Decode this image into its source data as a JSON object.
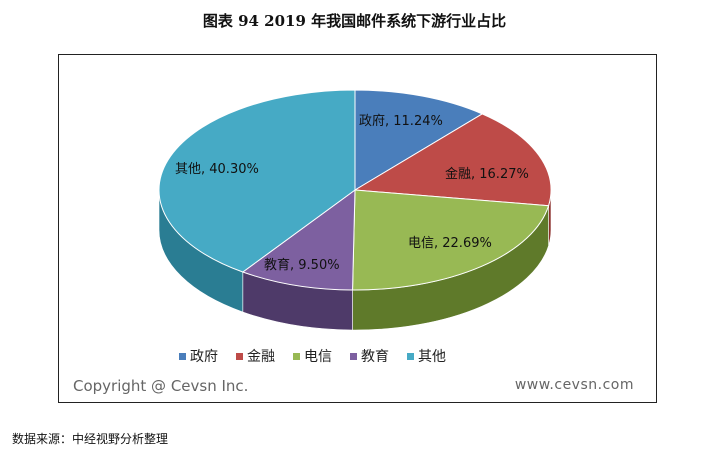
{
  "figure_title": "图表 94  2019 年我国邮件系统下游行业占比",
  "watermark": {
    "copyright": "Copyright @ Cevsn Inc.",
    "site": "www.cevsn.com"
  },
  "source_note": "数据来源：中经视野分析整理",
  "chart_data": {
    "type": "pie",
    "style": "3d",
    "legend_position": "bottom",
    "slices": [
      {
        "label": "政府",
        "value": 11.24,
        "data_label": "政府, 11.24%",
        "color": "#4A7EBB",
        "side_color": "#2E5A8C"
      },
      {
        "label": "金融",
        "value": 16.27,
        "data_label": "金融, 16.27%",
        "color": "#BE4B48",
        "side_color": "#8B2F2C"
      },
      {
        "label": "电信",
        "value": 22.69,
        "data_label": "电信, 22.69%",
        "color": "#98B954",
        "side_color": "#5F7A2A"
      },
      {
        "label": "教育",
        "value": 9.5,
        "data_label": "教育, 9.50%",
        "color": "#7D60A0",
        "side_color": "#4E3A69"
      },
      {
        "label": "其他",
        "value": 40.3,
        "data_label": "其他, 40.30%",
        "color": "#46AAC5",
        "side_color": "#2A7D93"
      }
    ]
  }
}
